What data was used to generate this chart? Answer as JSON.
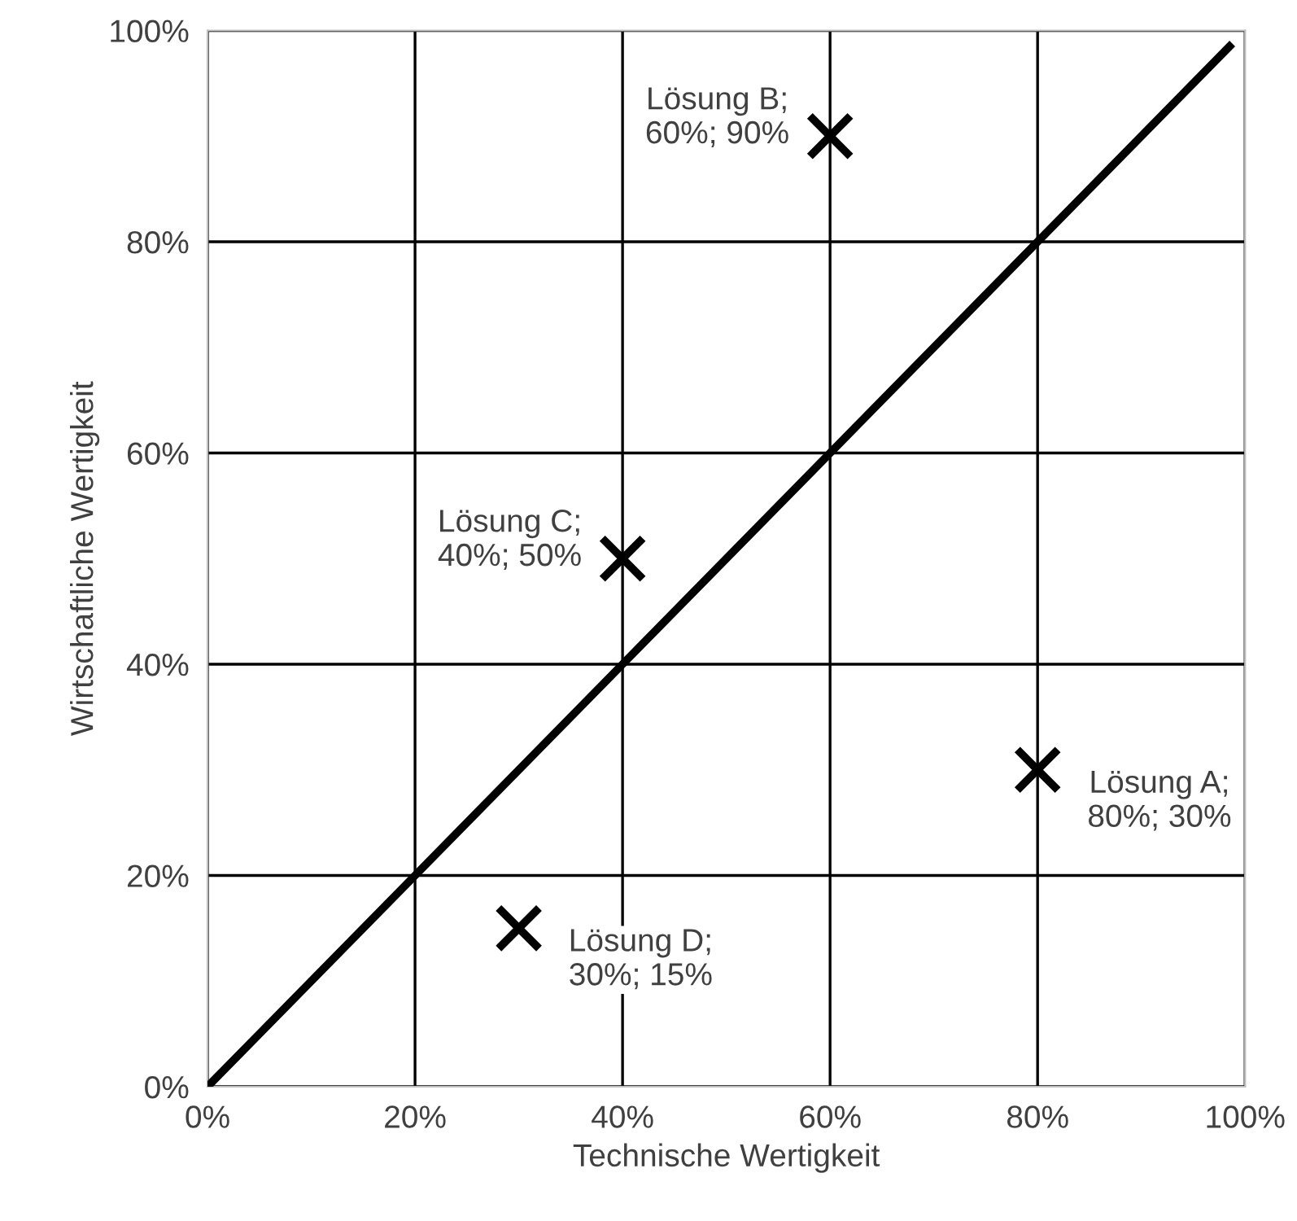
{
  "chart_data": {
    "type": "scatter",
    "xlabel": "Technische Wertigkeit",
    "ylabel": "Wirtschaftliche Wertigkeit",
    "series": [
      {
        "color": "#000000",
        "marker": "cross",
        "x": [
          80,
          60,
          40,
          30
        ],
        "values": [
          30,
          90,
          50,
          15
        ]
      },
      {
        "type": "line",
        "color": "#000000",
        "line_style": "solid",
        "x": [
          0,
          98.5
        ],
        "values": [
          0,
          98.5
        ]
      }
    ],
    "annotations": [
      {
        "text": "Lösung A;\n80%; 30%",
        "x": 80,
        "y": 30
      },
      {
        "text": "Lösung B;\n60%; 90%",
        "x": 60,
        "y": 90
      },
      {
        "text": "Lösung C;\n40%; 50%",
        "x": 40,
        "y": 50
      },
      {
        "text": "Lösung D;\n30%; 15%",
        "x": 30,
        "y": 15
      }
    ],
    "xlim": [
      0,
      100
    ],
    "ylim": [
      0,
      100
    ],
    "xticks": [
      {
        "value": 0,
        "label": "0%"
      },
      {
        "value": 20,
        "label": "20%"
      },
      {
        "value": 40,
        "label": "40%"
      },
      {
        "value": 60,
        "label": "60%"
      },
      {
        "value": 80,
        "label": "80%"
      },
      {
        "value": 100,
        "label": "100%"
      }
    ],
    "yticks": [
      {
        "value": 0,
        "label": "0%"
      },
      {
        "value": 20,
        "label": "20%"
      },
      {
        "value": 40,
        "label": "40%"
      },
      {
        "value": 60,
        "label": "60%"
      },
      {
        "value": 80,
        "label": "80%"
      },
      {
        "value": 100,
        "label": "100%"
      }
    ],
    "grid": true,
    "legend": false
  }
}
